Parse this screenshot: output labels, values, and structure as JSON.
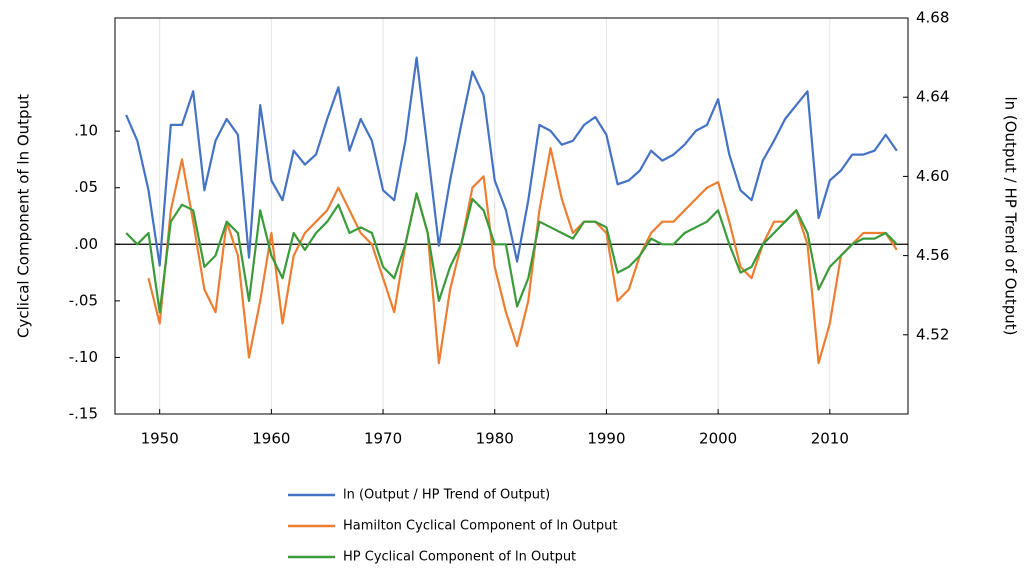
{
  "chart_data": {
    "type": "line",
    "ylabel": "Cyclical Component of ln Output",
    "y2label": "ln (Output / HP Trend of Output)",
    "x": [
      1947,
      1948,
      1949,
      1950,
      1951,
      1952,
      1953,
      1954,
      1955,
      1956,
      1957,
      1958,
      1959,
      1960,
      1961,
      1962,
      1963,
      1964,
      1965,
      1966,
      1967,
      1968,
      1969,
      1970,
      1971,
      1972,
      1973,
      1974,
      1975,
      1976,
      1977,
      1978,
      1979,
      1980,
      1981,
      1982,
      1983,
      1984,
      1985,
      1986,
      1987,
      1988,
      1989,
      1990,
      1991,
      1992,
      1993,
      1994,
      1995,
      1996,
      1997,
      1998,
      1999,
      2000,
      2001,
      2002,
      2003,
      2004,
      2005,
      2006,
      2007,
      2008,
      2009,
      2010,
      2011,
      2012,
      2013,
      2014,
      2015,
      2016
    ],
    "xlim": [
      1946,
      2017
    ],
    "xticks": [
      1950,
      1960,
      1970,
      1980,
      1990,
      2000,
      2010
    ],
    "ylim": [
      -0.15,
      0.2
    ],
    "yticks": [
      {
        "value": -0.15,
        "label": "-.15"
      },
      {
        "value": -0.1,
        "label": "-.10"
      },
      {
        "value": -0.05,
        "label": "-.05"
      },
      {
        "value": 0,
        "label": ".00"
      },
      {
        "value": 0.05,
        "label": ".05"
      },
      {
        "value": 0.1,
        "label": ".10"
      }
    ],
    "y2lim": [
      4.48,
      4.68
    ],
    "y2ticks": [
      4.52,
      4.56,
      {
        "value": 4.6,
        "label": "4.60"
      },
      4.64,
      4.68
    ],
    "grid": "x",
    "legend": "bottom",
    "series": [
      {
        "name": "ln (Output / HP Trend of Output)",
        "color": "#4472c4",
        "axis": "y2",
        "values": [
          4.631,
          4.618,
          4.593,
          4.555,
          4.626,
          4.626,
          4.643,
          4.593,
          4.618,
          4.629,
          4.621,
          4.559,
          4.636,
          4.598,
          4.588,
          4.613,
          4.606,
          4.611,
          4.629,
          4.645,
          4.613,
          4.629,
          4.618,
          4.593,
          4.588,
          4.618,
          4.66,
          4.613,
          4.565,
          4.598,
          4.626,
          4.653,
          4.641,
          4.598,
          4.583,
          4.557,
          4.588,
          4.626,
          4.623,
          4.616,
          4.618,
          4.626,
          4.63,
          4.621,
          4.596,
          4.598,
          4.603,
          4.613,
          4.608,
          4.611,
          4.616,
          4.623,
          4.626,
          4.639,
          4.611,
          4.593,
          4.588,
          4.608,
          4.618,
          4.629,
          4.636,
          4.643,
          4.579,
          4.598,
          4.603,
          4.611,
          4.611,
          4.613,
          4.621,
          4.613
        ]
      },
      {
        "name": "Hamilton Cyclical Component of ln Output",
        "color": "#ed7d31",
        "values": [
          null,
          null,
          -0.03,
          -0.07,
          0.03,
          0.075,
          0.02,
          -0.04,
          -0.06,
          0.02,
          -0.01,
          -0.1,
          -0.05,
          0.01,
          -0.07,
          -0.01,
          0.01,
          0.02,
          0.03,
          0.05,
          0.03,
          0.01,
          0,
          -0.03,
          -0.06,
          0,
          0.045,
          0.01,
          -0.105,
          -0.04,
          0,
          0.05,
          0.06,
          -0.02,
          -0.06,
          -0.09,
          -0.05,
          0.03,
          0.085,
          0.04,
          0.01,
          0.02,
          0.02,
          0.01,
          -0.05,
          -0.04,
          -0.01,
          0.01,
          0.02,
          0.02,
          0.03,
          0.04,
          0.05,
          0.055,
          0.02,
          -0.02,
          -0.03,
          0,
          0.02,
          0.02,
          0.03,
          0,
          -0.105,
          -0.07,
          -0.01,
          0,
          0.01,
          0.01,
          0.01,
          -0.005
        ]
      },
      {
        "name": "HP Cyclical Component of ln Output",
        "color": "#3a9b3a",
        "values": [
          0.01,
          0,
          0.01,
          -0.06,
          0.02,
          0.035,
          0.03,
          -0.02,
          -0.01,
          0.02,
          0.01,
          -0.05,
          0.03,
          -0.01,
          -0.03,
          0.01,
          -0.005,
          0.01,
          0.02,
          0.035,
          0.01,
          0.015,
          0.01,
          -0.02,
          -0.03,
          0,
          0.045,
          0.01,
          -0.05,
          -0.02,
          0,
          0.04,
          0.03,
          0,
          0,
          -0.055,
          -0.03,
          0.02,
          0.015,
          0.01,
          0.005,
          0.02,
          0.02,
          0.015,
          -0.025,
          -0.02,
          -0.01,
          0.005,
          0,
          0,
          0.01,
          0.015,
          0.02,
          0.03,
          0,
          -0.025,
          -0.02,
          0,
          0.01,
          0.02,
          0.03,
          0.01,
          -0.04,
          -0.02,
          -0.01,
          0,
          0.005,
          0.005,
          0.01,
          0
        ]
      }
    ]
  }
}
